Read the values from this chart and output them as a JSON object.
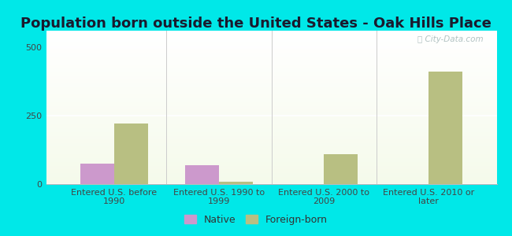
{
  "title": "Population born outside the United States - Oak Hills Place",
  "categories": [
    "Entered U.S. before\n1990",
    "Entered U.S. 1990 to\n1999",
    "Entered U.S. 2000 to\n2009",
    "Entered U.S. 2010 or\nlater"
  ],
  "native_values": [
    75,
    70,
    0,
    0
  ],
  "foreign_values": [
    220,
    10,
    110,
    410
  ],
  "native_color": "#cc99cc",
  "foreign_color": "#b8bf82",
  "background_outer": "#00e8e8",
  "ylim": [
    0,
    560
  ],
  "yticks": [
    0,
    250,
    500
  ],
  "bar_width": 0.32,
  "title_fontsize": 13,
  "tick_fontsize": 8,
  "legend_fontsize": 9,
  "watermark_text": "ⓘ City-Data.com",
  "watermark_color": "#aabcbc",
  "title_color": "#1a1a2e"
}
